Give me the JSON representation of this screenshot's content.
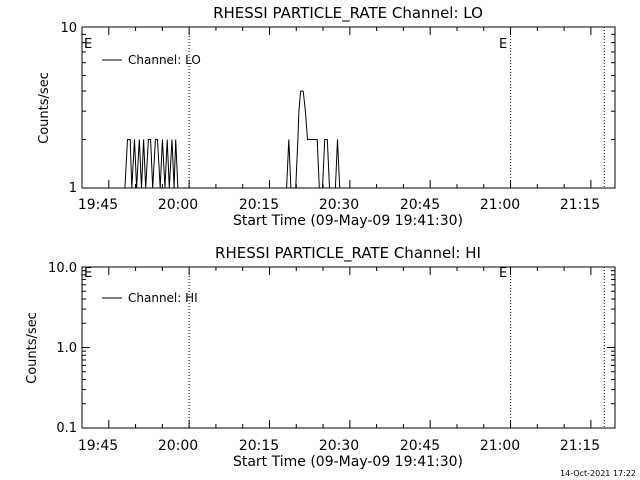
{
  "footer": {
    "timestamp": "14-Oct-2021 17:22"
  },
  "chart_data": [
    {
      "type": "line",
      "title": "RHESSI PARTICLE_RATE Channel: LO",
      "xlabel": "Start Time (09-May-09 19:41:30)",
      "ylabel": "Counts/sec",
      "yscale": "log",
      "ylim": [
        1,
        10
      ],
      "y_ticks": [
        "1",
        "10"
      ],
      "x_ticks": [
        "19:45",
        "20:00",
        "20:15",
        "20:30",
        "20:45",
        "21:00",
        "21:15"
      ],
      "x_range_minutes_from_start": [
        -1.5,
        98
      ],
      "event_marker_label": "E",
      "vertical_dotted_lines_minutes": [
        18.5,
        78.5,
        96
      ],
      "event_labels_minutes": [
        0,
        78.5
      ],
      "legend": {
        "placement": "top-left"
      },
      "series": [
        {
          "name": "Channel: LO",
          "points": [
            [
              6.5,
              1
            ],
            [
              7.0,
              2
            ],
            [
              7.5,
              2
            ],
            [
              7.8,
              1
            ],
            [
              8.3,
              2
            ],
            [
              8.7,
              1
            ],
            [
              9.2,
              2
            ],
            [
              9.6,
              1
            ],
            [
              10.0,
              2
            ],
            [
              10.4,
              1
            ],
            [
              10.9,
              2
            ],
            [
              11.3,
              2
            ],
            [
              11.7,
              1
            ],
            [
              12.2,
              2
            ],
            [
              12.6,
              2
            ],
            [
              13.1,
              1
            ],
            [
              13.5,
              2
            ],
            [
              14.0,
              1
            ],
            [
              14.4,
              2
            ],
            [
              14.8,
              1
            ],
            [
              15.3,
              2
            ],
            [
              15.7,
              1
            ],
            [
              16.0,
              2
            ],
            [
              16.4,
              1
            ],
            [
              16.8,
              1
            ],
            [
              36.7,
              1
            ],
            [
              37.1,
              2
            ],
            [
              37.5,
              1
            ],
            [
              38.4,
              1
            ],
            [
              38.8,
              2
            ],
            [
              39.0,
              3
            ],
            [
              39.3,
              4
            ],
            [
              39.8,
              4
            ],
            [
              40.2,
              3
            ],
            [
              40.6,
              2
            ],
            [
              41.0,
              2
            ],
            [
              42.0,
              2
            ],
            [
              42.4,
              2
            ],
            [
              42.8,
              1
            ],
            [
              43.4,
              1
            ],
            [
              43.8,
              2
            ],
            [
              44.3,
              2
            ],
            [
              44.7,
              1
            ],
            [
              45.8,
              1
            ],
            [
              46.2,
              2
            ],
            [
              46.6,
              1
            ]
          ]
        }
      ]
    },
    {
      "type": "line",
      "title": "RHESSI PARTICLE_RATE Channel: HI",
      "xlabel": "Start Time (09-May-09 19:41:30)",
      "ylabel": "Counts/sec",
      "yscale": "log",
      "ylim": [
        0.1,
        10
      ],
      "y_ticks": [
        "0.1",
        "1.0",
        "10.0"
      ],
      "x_ticks": [
        "19:45",
        "20:00",
        "20:15",
        "20:30",
        "20:45",
        "21:00",
        "21:15"
      ],
      "x_range_minutes_from_start": [
        -1.5,
        98
      ],
      "event_marker_label": "E",
      "vertical_dotted_lines_minutes": [
        18.5,
        78.5,
        96
      ],
      "event_labels_minutes": [
        0,
        78.5
      ],
      "legend": {
        "placement": "top-left"
      },
      "series": [
        {
          "name": "Channel: HI",
          "points": []
        }
      ]
    }
  ]
}
